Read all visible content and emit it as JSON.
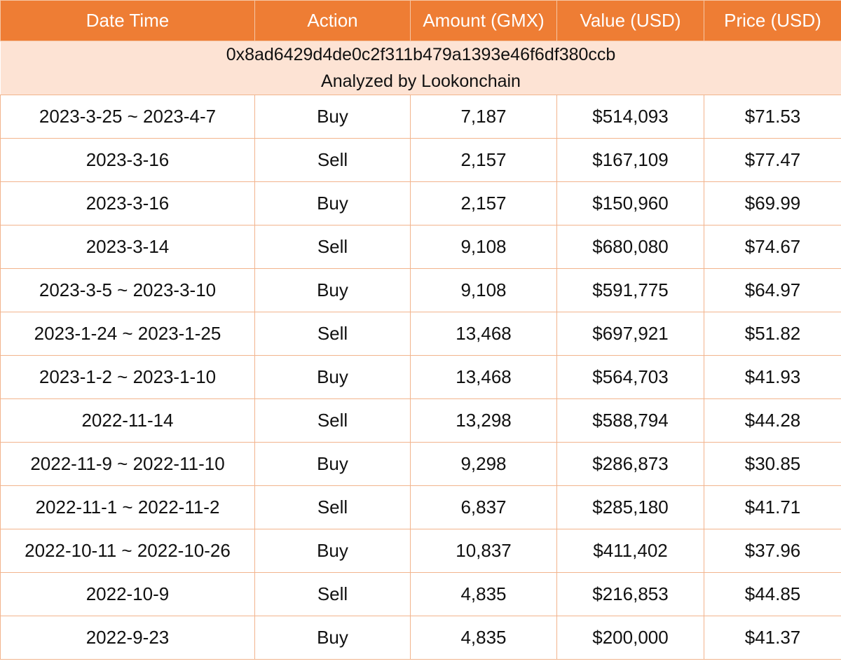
{
  "table": {
    "headers": [
      "Date Time",
      "Action",
      "Amount (GMX)",
      "Value (USD)",
      "Price (USD)"
    ],
    "address": "0x8ad6429d4de0c2f311b479a1393e46f6df380ccb",
    "analyzed_by": "Analyzed by Lookonchain",
    "rows": [
      {
        "date": "2023-3-25 ~ 2023-4-7",
        "action": "Buy",
        "amount": "7,187",
        "value": "$514,093",
        "price": "$71.53"
      },
      {
        "date": "2023-3-16",
        "action": "Sell",
        "amount": "2,157",
        "value": "$167,109",
        "price": "$77.47"
      },
      {
        "date": "2023-3-16",
        "action": "Buy",
        "amount": "2,157",
        "value": "$150,960",
        "price": "$69.99"
      },
      {
        "date": "2023-3-14",
        "action": "Sell",
        "amount": "9,108",
        "value": "$680,080",
        "price": "$74.67"
      },
      {
        "date": "2023-3-5 ~ 2023-3-10",
        "action": "Buy",
        "amount": "9,108",
        "value": "$591,775",
        "price": "$64.97"
      },
      {
        "date": "2023-1-24 ~ 2023-1-25",
        "action": "Sell",
        "amount": "13,468",
        "value": "$697,921",
        "price": "$51.82"
      },
      {
        "date": "2023-1-2 ~ 2023-1-10",
        "action": "Buy",
        "amount": "13,468",
        "value": "$564,703",
        "price": "$41.93"
      },
      {
        "date": "2022-11-14",
        "action": "Sell",
        "amount": "13,298",
        "value": "$588,794",
        "price": "$44.28"
      },
      {
        "date": "2022-11-9 ~ 2022-11-10",
        "action": "Buy",
        "amount": "9,298",
        "value": "$286,873",
        "price": "$30.85"
      },
      {
        "date": "2022-11-1 ~ 2022-11-2",
        "action": "Sell",
        "amount": "6,837",
        "value": "$285,180",
        "price": "$41.71"
      },
      {
        "date": "2022-10-11 ~ 2022-10-26",
        "action": "Buy",
        "amount": "10,837",
        "value": "$411,402",
        "price": "$37.96"
      },
      {
        "date": "2022-10-9",
        "action": "Sell",
        "amount": "4,835",
        "value": "$216,853",
        "price": "$44.85"
      },
      {
        "date": "2022-9-23",
        "action": "Buy",
        "amount": "4,835",
        "value": "$200,000",
        "price": "$41.37"
      }
    ]
  },
  "colors": {
    "header_bg": "#ee7d34",
    "subheader_bg": "#fde3d4",
    "border": "#f2b48d"
  }
}
